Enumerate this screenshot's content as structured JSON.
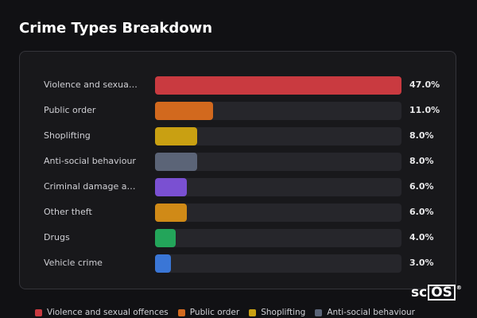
{
  "chart_data": {
    "type": "hbar",
    "title": "Crime Types Breakdown",
    "categories": [
      "Violence and sexual offences",
      "Public order",
      "Shoplifting",
      "Anti-social behaviour",
      "Criminal damage and arson",
      "Other theft",
      "Drugs",
      "Vehicle crime"
    ],
    "values": [
      47.0,
      11.0,
      8.0,
      8.0,
      6.0,
      6.0,
      4.0,
      3.0
    ],
    "value_labels": [
      "47.0%",
      "11.0%",
      "8.0%",
      "8.0%",
      "6.0%",
      "6.0%",
      "4.0%",
      "3.0%"
    ],
    "colors": [
      "#c93a40",
      "#d2691e",
      "#c9a012",
      "#5b6477",
      "#7a50d2",
      "#d08a17",
      "#23a55a",
      "#3a76d6"
    ],
    "legend": true
  },
  "logo": {
    "text": "sc",
    "boxed": "OS",
    "mark": "®"
  }
}
